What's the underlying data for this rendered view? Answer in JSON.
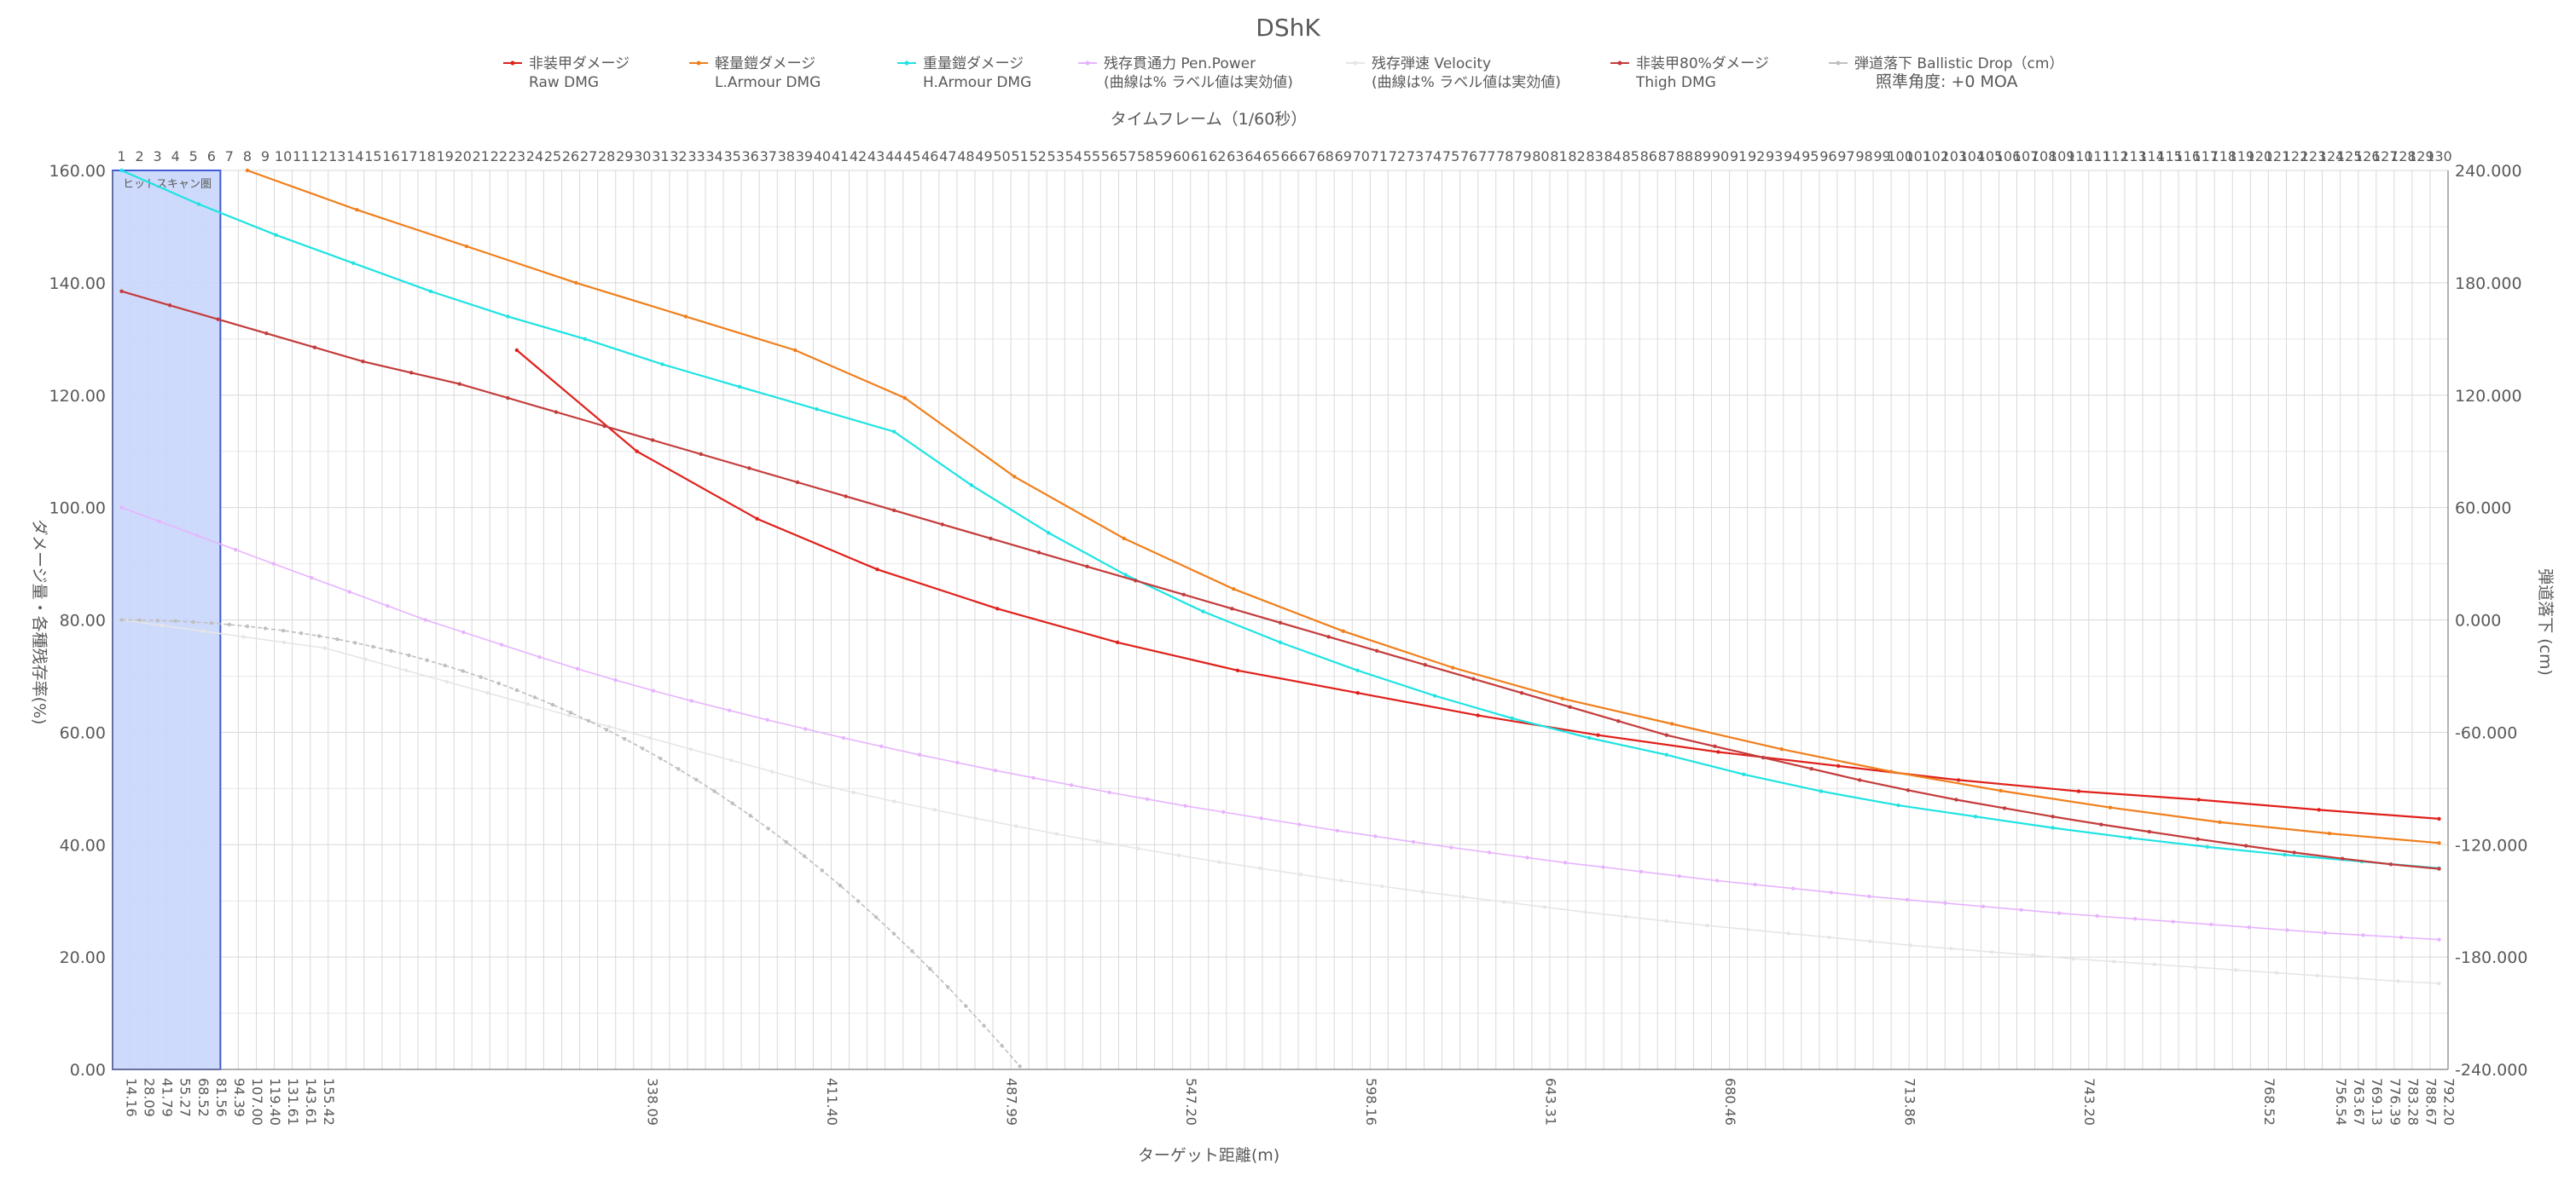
{
  "chart_data": {
    "type": "line",
    "title": "DShK",
    "top_axis_label": "タイムフレーム（1/60秒）",
    "xlabel": "ターゲット距離(m)",
    "ylabel": "ダメージ量・各種残存率(%)",
    "y2label": "弾道落下 (cm)",
    "ylim": [
      0,
      160
    ],
    "y_ticks": [
      "0.00",
      "20.00",
      "40.00",
      "60.00",
      "80.00",
      "100.00",
      "120.00",
      "140.00",
      "160.00"
    ],
    "y2lim": [
      -240,
      240
    ],
    "y2_ticks": [
      "-240.000",
      "-180.000",
      "-120.000",
      "-60.000",
      "0.000",
      "60.000",
      "120.000",
      "180.000",
      "240.000"
    ],
    "frame_range": [
      1,
      130
    ],
    "x_first_labels": [
      "14.16",
      "28.09",
      "41.79",
      "55.27",
      "68.52",
      "81.56",
      "94.39",
      "107.00",
      "119.40",
      "131.61",
      "143.61",
      "155.42"
    ],
    "x_last_labels": [
      "756.54",
      "763.67",
      "769.13",
      "776.39",
      "783.28",
      "788.67",
      "792.20"
    ],
    "x_mid_samples": {
      "30": "338.09",
      "40": "411.40",
      "50": "487.99",
      "60": "547.20",
      "70": "598.16",
      "80": "643.31",
      "90": "680.46",
      "100": "713.86",
      "110": "743.20",
      "120": "768.52"
    },
    "grid": true,
    "legend_position": "top",
    "aim_angle_label": "照準角度: +0 MOA",
    "hitscan_label": "ヒットスキャン圏",
    "hitscan_frames": [
      1,
      6
    ],
    "series": [
      {
        "name": "非装甲ダメージ\nRaw DMG",
        "color": "#e0201b",
        "start_frame": 23,
        "values": [
          128,
          110,
          98,
          89,
          82,
          76,
          71,
          67,
          63,
          59.5,
          56.5,
          54,
          51.5,
          49.5,
          48,
          46.2,
          44.6
        ]
      },
      {
        "name": "軽量鎧ダメージ\nL.Armour DMG",
        "color": "#f07f1c",
        "start_frame": 8,
        "values": [
          160,
          153,
          146.5,
          140,
          134,
          128,
          119.5,
          105.5,
          94.5,
          85.5,
          78,
          71.5,
          66,
          61.5,
          57,
          53,
          49.6,
          46.6,
          44,
          42,
          40.3
        ]
      },
      {
        "name": "重量鎧ダメージ\nH.Armour DMG",
        "color": "#1fe3e3",
        "start_frame": 1,
        "values": [
          160,
          154,
          148.5,
          143.5,
          138.5,
          134,
          130,
          125.5,
          121.5,
          117.5,
          113.5,
          104,
          95.5,
          88,
          81.5,
          76,
          71,
          66.5,
          62.5,
          59,
          56,
          52.5,
          49.5,
          47,
          45,
          43,
          41.2,
          39.6,
          38.2,
          37,
          35.8
        ]
      },
      {
        "name": "残存貫通力 Pen.Power\n(曲線は% ラベル値は実効値)",
        "color": "#e7b3ff",
        "start_frame": 1,
        "values": [
          100,
          97.5,
          95,
          92.5,
          90,
          87.5,
          85,
          82.5,
          80,
          77.8,
          75.6,
          73.4,
          71.3,
          69.3,
          67.4,
          65.6,
          63.9,
          62.2,
          60.6,
          59,
          57.5,
          56,
          54.6,
          53.2,
          51.9,
          50.6,
          49.3,
          48.1,
          46.9,
          45.8,
          44.7,
          43.6,
          42.5,
          41.5,
          40.5,
          39.5,
          38.6,
          37.7,
          36.8,
          36,
          35.2,
          34.4,
          33.6,
          32.9,
          32.2,
          31.5,
          30.8,
          30.2,
          29.6,
          29,
          28.4,
          27.8,
          27.3,
          26.8,
          26.3,
          25.8,
          25.3,
          24.8,
          24.3,
          23.9,
          23.5,
          23.1
        ]
      },
      {
        "name": "残存弾速 Velocity\n(曲線は% ラベル値は実効値)",
        "color": "#e6e6e6",
        "start_frame": 1,
        "values": [
          80,
          79,
          78,
          77,
          76,
          75,
          73,
          71,
          69,
          67,
          65,
          63,
          61,
          59,
          57,
          55,
          53,
          51,
          49.3,
          47.7,
          46.2,
          44.7,
          43.3,
          41.9,
          40.6,
          39.3,
          38.1,
          36.9,
          35.8,
          34.7,
          33.6,
          32.6,
          31.6,
          30.7,
          29.8,
          28.9,
          28,
          27.2,
          26.4,
          25.6,
          24.9,
          24.2,
          23.5,
          22.8,
          22.1,
          21.5,
          20.9,
          20.3,
          19.7,
          19.2,
          18.7,
          18.2,
          17.7,
          17.2,
          16.7,
          16.2,
          15.7,
          15.3
        ]
      },
      {
        "name": "非装甲80%ダメージ\nThigh DMG",
        "color": "#c43b3b",
        "start_frame": 1,
        "values": [
          138.5,
          136,
          133.5,
          131,
          128.5,
          126,
          124,
          122,
          119.5,
          117,
          114.5,
          112,
          109.5,
          107,
          104.5,
          102,
          99.5,
          97,
          94.5,
          92,
          89.5,
          87,
          84.5,
          82,
          79.5,
          77,
          74.5,
          72,
          69.5,
          67,
          64.5,
          62,
          59.5,
          57.5,
          55.5,
          53.5,
          51.5,
          49.7,
          48,
          46.5,
          45,
          43.6,
          42.3,
          41,
          39.8,
          38.6,
          37.5,
          36.5,
          35.7
        ]
      },
      {
        "name": "弾道落下 Ballistic Drop（cm）",
        "color": "#bfbfbf",
        "axis": "right",
        "start_frame": 1,
        "values": [
          0,
          -0.1,
          -0.3,
          -0.6,
          -1.1,
          -1.7,
          -2.5,
          -3.4,
          -4.5,
          -5.7,
          -7.1,
          -8.6,
          -10.3,
          -12.2,
          -14.3,
          -16.5,
          -18.9,
          -21.5,
          -24.3,
          -27.3,
          -30.5,
          -33.9,
          -37.5,
          -41.3,
          -45.3,
          -49.5,
          -53.9,
          -58.6,
          -63.5,
          -68.6,
          -74,
          -79.6,
          -85.4,
          -91.5,
          -97.9,
          -104.5,
          -111.4,
          -118.6,
          -126.1,
          -133.8,
          -141.8,
          -150.1,
          -158.7,
          -167.6,
          -176.8,
          -186.3,
          -196.1,
          -206.2,
          -216.6,
          -227.3,
          -238.3
        ]
      }
    ]
  },
  "legend": [
    {
      "line1": "非装甲ダメージ",
      "line2": "Raw DMG",
      "color": "#e0201b"
    },
    {
      "line1": "軽量鎧ダメージ",
      "line2": "L.Armour DMG",
      "color": "#f07f1c"
    },
    {
      "line1": "重量鎧ダメージ",
      "line2": "H.Armour DMG",
      "color": "#1fe3e3"
    },
    {
      "line1": "残存貫通力 Pen.Power",
      "line2": "(曲線は% ラベル値は実効値)",
      "color": "#e7b3ff"
    },
    {
      "line1": "残存弾速 Velocity",
      "line2": "(曲線は% ラベル値は実効値)",
      "color": "#e6e6e6"
    },
    {
      "line1": "非装甲80%ダメージ",
      "line2": "Thigh DMG",
      "color": "#c43b3b"
    },
    {
      "line1": "弾道落下 Ballistic Drop（cm）",
      "line2": "照準角度: +0 MOA",
      "color": "#bfbfbf"
    }
  ]
}
